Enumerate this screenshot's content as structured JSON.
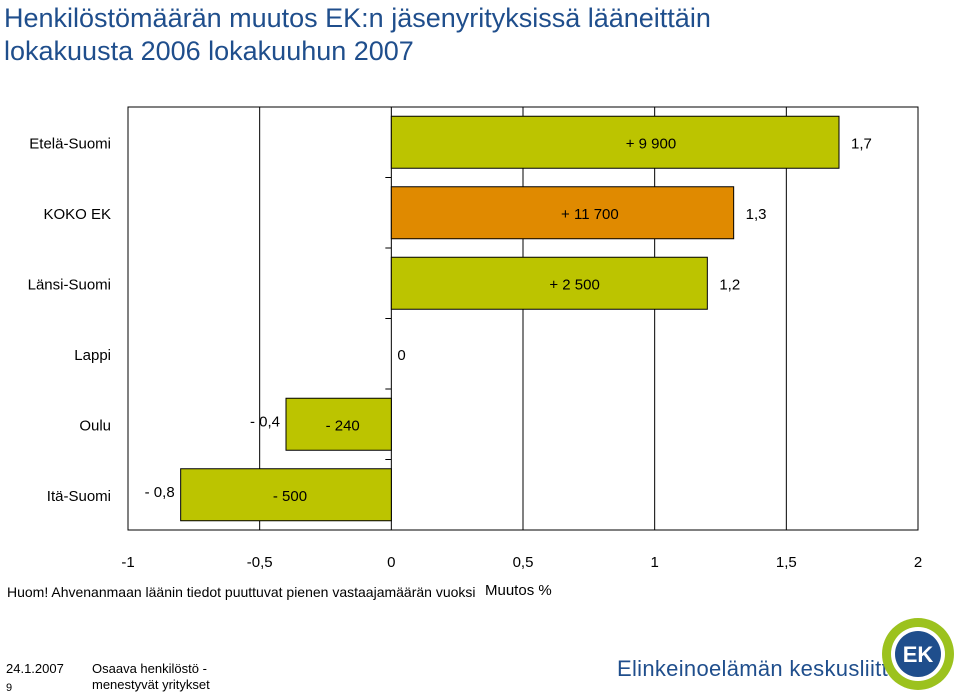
{
  "title_line1": "Henkilöstömäärän muutos EK:n jäsenyrityksissä lääneittäin",
  "title_line2": "lokakuusta 2006 lokakuuhun 2007",
  "note": "Huom! Ahvenanmaan läänin tiedot puuttuvat pienen vastaajamäärän vuoksi",
  "footer": {
    "date": "24.1.2007",
    "page": "9",
    "text": "Osaava henkilöstö - menestyvät yritykset",
    "brand": "Elinkeinoelämän keskusliitto",
    "logo_text": "EK"
  },
  "colors": {
    "bar": "#bcc400",
    "highlight": "#e08a00",
    "title": "#1f4e8c",
    "logo_green": "#9cc21e",
    "logo_blue": "#1f4e8c"
  },
  "chart_data": {
    "type": "bar",
    "orientation": "horizontal",
    "xlabel": "Muutos %",
    "xlim": [
      -1,
      2
    ],
    "xticks": [
      "-1",
      "-0,5",
      "0",
      "0,5",
      "1",
      "1,5",
      "2"
    ],
    "categories": [
      "Etelä-Suomi",
      "KOKO EK",
      "Länsi-Suomi",
      "Lappi",
      "Oulu",
      "Itä-Suomi"
    ],
    "values": [
      1.7,
      1.3,
      1.2,
      0,
      -0.4,
      -0.8
    ],
    "value_labels": [
      "1,7",
      "1,3",
      "1,2",
      "0",
      "- 0,4",
      "- 0,8"
    ],
    "change_labels": [
      "+ 9 900",
      "+ 11 700",
      "+ 2 500",
      "",
      "- 240",
      "- 500"
    ],
    "highlight": "KOKO EK",
    "grid": "vertical",
    "legend": "none"
  }
}
